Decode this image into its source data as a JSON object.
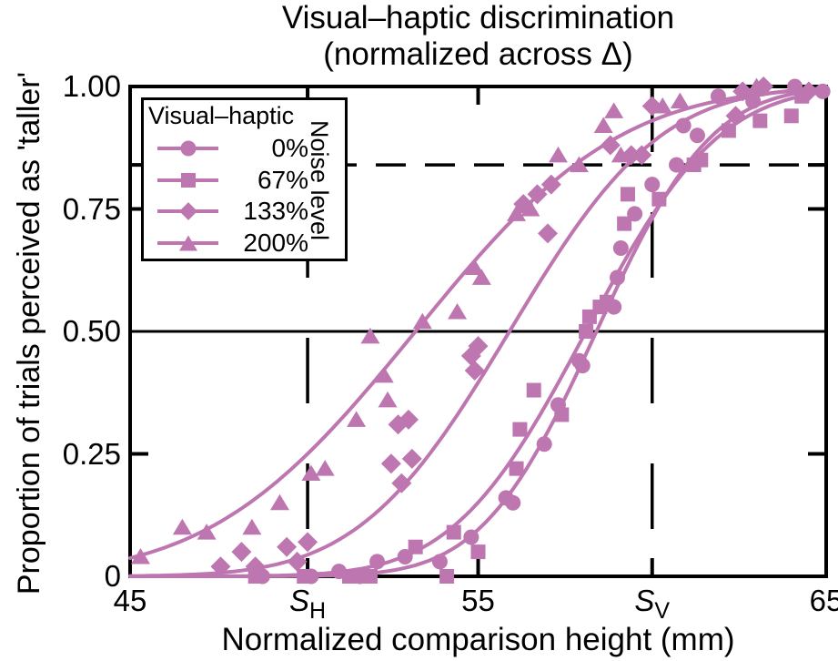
{
  "title": {
    "line1": "Visual–haptic discrimination",
    "line2": "(normalized across Δ)"
  },
  "axes": {
    "x_label": "Normalized comparison height (mm)",
    "y_label": "Proportion of trials perceived as 'taller'",
    "x_ticks": [
      {
        "value": 45,
        "label": "45",
        "italic": false
      },
      {
        "value": 50.1,
        "label": "S",
        "sub": "H",
        "italic": true
      },
      {
        "value": 55,
        "label": "55",
        "italic": false
      },
      {
        "value": 60.0,
        "label": "S",
        "sub": "V",
        "italic": true
      },
      {
        "value": 65,
        "label": "65",
        "italic": false
      }
    ],
    "y_ticks": [
      {
        "value": 0,
        "label": "0"
      },
      {
        "value": 0.25,
        "label": "0.25"
      },
      {
        "value": 0.5,
        "label": "0.50"
      },
      {
        "value": 0.75,
        "label": "0.75"
      },
      {
        "value": 1.0,
        "label": "1.00"
      }
    ]
  },
  "legend": {
    "title": "Visual–haptic",
    "side_label": "Noise level",
    "entries": [
      {
        "marker": "circle",
        "label": "0%"
      },
      {
        "marker": "square",
        "label": "67%"
      },
      {
        "marker": "diamond",
        "label": "133%"
      },
      {
        "marker": "triangle",
        "label": "200%"
      }
    ]
  },
  "colors": {
    "accent": "#bd76b0",
    "axis": "#000000",
    "background": "#ffffff"
  },
  "chart_data": {
    "type": "scatter",
    "title": "Visual–haptic discrimination (normalized across Δ)",
    "xlabel": "Normalized comparison height (mm)",
    "ylabel": "Proportion of trials perceived as 'taller'",
    "xlim": [
      45,
      65
    ],
    "ylim": [
      0,
      1
    ],
    "x_tick_values": [
      45,
      50.1,
      55,
      60.0,
      65
    ],
    "x_tick_labels": [
      "45",
      "S_H",
      "55",
      "S_V",
      "65"
    ],
    "y_tick_values": [
      0,
      0.25,
      0.5,
      0.75,
      1.0
    ],
    "inner_ticks": {
      "x": [
        50.1,
        55,
        60.0
      ],
      "y": [
        0.25,
        0.75,
        0.84
      ]
    },
    "reference_lines": {
      "horizontal_solid_y": 0.5,
      "horizontal_dashed_y": 0.84,
      "vertical_dashed_x": [
        50.1,
        60.0
      ]
    },
    "legend_position": "upper-left",
    "grid": false,
    "series": [
      {
        "name": "0%",
        "marker": "circle",
        "curve": {
          "model": "cumulative_gaussian",
          "mu": 58.4,
          "sigma": 2.6
        },
        "points": [
          [
            48.8,
            0.0
          ],
          [
            50.2,
            0.0
          ],
          [
            51.0,
            0.01
          ],
          [
            51.6,
            0.0
          ],
          [
            52.1,
            0.03
          ],
          [
            52.9,
            0.04
          ],
          [
            53.9,
            0.03
          ],
          [
            54.8,
            0.08
          ],
          [
            55.8,
            0.16
          ],
          [
            56.0,
            0.15
          ],
          [
            56.9,
            0.27
          ],
          [
            57.3,
            0.35
          ],
          [
            57.9,
            0.44
          ],
          [
            58.0,
            0.43
          ],
          [
            58.9,
            0.55
          ],
          [
            59.0,
            0.61
          ],
          [
            59.1,
            0.67
          ],
          [
            59.5,
            0.74
          ],
          [
            60.0,
            0.8
          ],
          [
            60.7,
            0.84
          ],
          [
            60.9,
            0.92
          ],
          [
            61.3,
            0.9
          ],
          [
            61.9,
            0.98
          ],
          [
            62.9,
            0.97
          ],
          [
            64.1,
            1.0
          ],
          [
            64.9,
            0.99
          ]
        ]
      },
      {
        "name": "67%",
        "marker": "square",
        "curve": {
          "model": "cumulative_gaussian",
          "mu": 58.1,
          "sigma": 3.0
        },
        "points": [
          [
            48.6,
            0.0
          ],
          [
            50.0,
            0.0
          ],
          [
            51.3,
            0.0
          ],
          [
            51.9,
            0.0
          ],
          [
            53.2,
            0.06
          ],
          [
            54.1,
            0.0
          ],
          [
            54.3,
            0.09
          ],
          [
            55.0,
            0.05
          ],
          [
            56.1,
            0.22
          ],
          [
            56.2,
            0.3
          ],
          [
            56.6,
            0.38
          ],
          [
            57.4,
            0.33
          ],
          [
            58.1,
            0.5
          ],
          [
            58.2,
            0.53
          ],
          [
            58.5,
            0.55
          ],
          [
            58.7,
            0.56
          ],
          [
            59.2,
            0.72
          ],
          [
            59.3,
            0.78
          ],
          [
            60.2,
            0.77
          ],
          [
            61.2,
            0.84
          ],
          [
            61.4,
            0.85
          ],
          [
            62.2,
            0.91
          ],
          [
            63.1,
            0.93
          ],
          [
            64.0,
            0.94
          ],
          [
            64.3,
            0.98
          ]
        ]
      },
      {
        "name": "133%",
        "marker": "diamond",
        "curve": {
          "model": "cumulative_gaussian",
          "mu": 55.9,
          "sigma": 3.4
        },
        "points": [
          [
            47.6,
            0.02
          ],
          [
            48.2,
            0.05
          ],
          [
            48.6,
            0.02
          ],
          [
            49.5,
            0.06
          ],
          [
            49.8,
            0.03
          ],
          [
            50.1,
            0.07
          ],
          [
            52.5,
            0.23
          ],
          [
            52.7,
            0.31
          ],
          [
            52.8,
            0.19
          ],
          [
            53.0,
            0.32
          ],
          [
            53.1,
            0.24
          ],
          [
            54.8,
            0.45
          ],
          [
            54.9,
            0.42
          ],
          [
            55.0,
            0.47
          ],
          [
            56.3,
            0.76
          ],
          [
            56.7,
            0.78
          ],
          [
            57.0,
            0.7
          ],
          [
            57.1,
            0.8
          ],
          [
            58.8,
            0.88
          ],
          [
            59.4,
            0.86
          ],
          [
            59.7,
            0.86
          ],
          [
            60.0,
            0.96
          ],
          [
            62.4,
            0.94
          ],
          [
            62.6,
            0.99
          ],
          [
            63.2,
            1.0
          ],
          [
            64.5,
            0.99
          ]
        ]
      },
      {
        "name": "200%",
        "marker": "triangle",
        "curve": {
          "model": "cumulative_gaussian",
          "mu": 53.2,
          "sigma": 4.6
        },
        "points": [
          [
            45.3,
            0.04
          ],
          [
            46.5,
            0.1
          ],
          [
            47.2,
            0.09
          ],
          [
            48.5,
            0.1
          ],
          [
            49.3,
            0.15
          ],
          [
            50.2,
            0.21
          ],
          [
            50.6,
            0.22
          ],
          [
            51.5,
            0.32
          ],
          [
            51.9,
            0.49
          ],
          [
            52.3,
            0.41
          ],
          [
            52.4,
            0.36
          ],
          [
            53.4,
            0.52
          ],
          [
            54.4,
            0.54
          ],
          [
            54.9,
            0.63
          ],
          [
            55.1,
            0.61
          ],
          [
            56.1,
            0.74
          ],
          [
            56.5,
            0.75
          ],
          [
            57.3,
            0.86
          ],
          [
            57.9,
            0.84
          ],
          [
            58.6,
            0.92
          ],
          [
            58.9,
            0.95
          ],
          [
            59.1,
            0.86
          ],
          [
            60.3,
            0.96
          ],
          [
            60.8,
            0.97
          ],
          [
            63.0,
            1.0
          ]
        ]
      }
    ]
  }
}
